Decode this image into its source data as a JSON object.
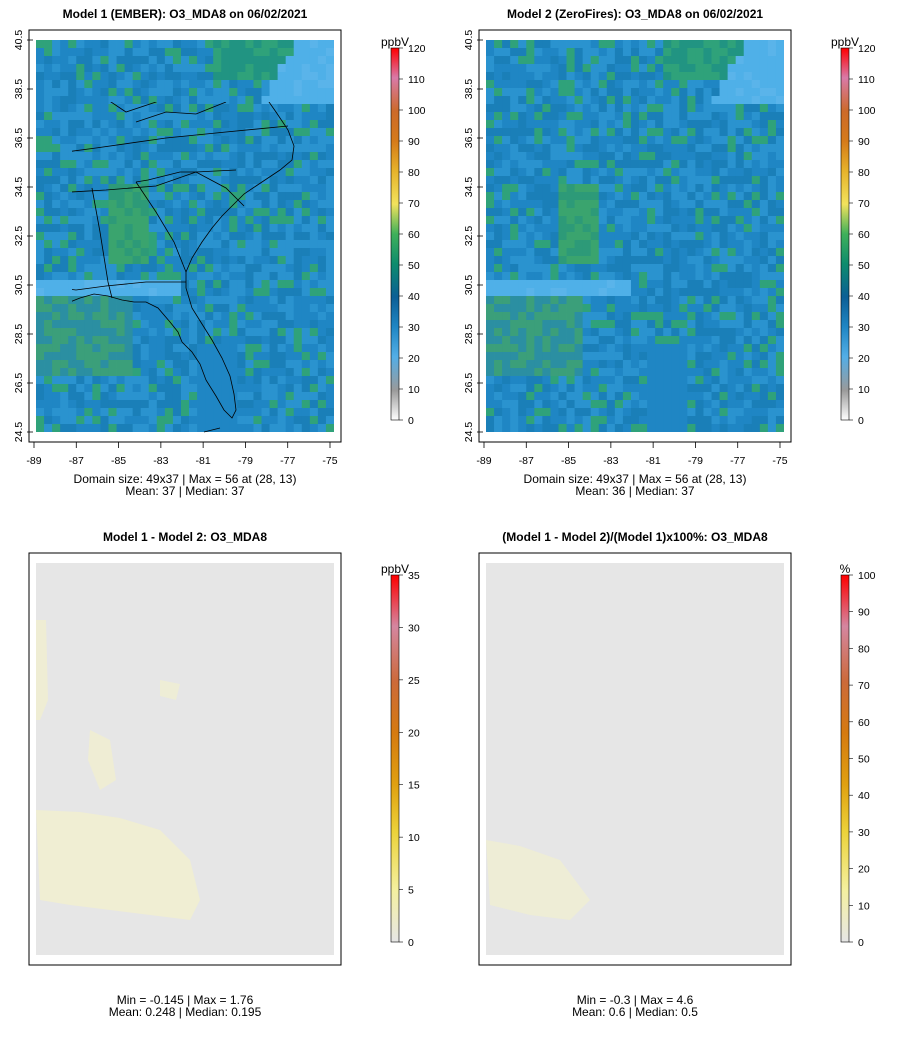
{
  "chart_data": [
    {
      "type": "heatmap",
      "title": "Model 1 (EMBER): O3_MDA8 on 06/02/2021",
      "domain_size": "49x37",
      "max": 56,
      "max_at": "(28, 13)",
      "mean": 37,
      "median": 37,
      "stats_line1": "Domain size: 49x37 | Max = 56 at (28, 13)",
      "stats_line2": "Mean: 37 |  Median: 37",
      "unit": "ppbV",
      "colorbar_ticks": [
        "0",
        "10",
        "20",
        "30",
        "40",
        "50",
        "60",
        "70",
        "80",
        "90",
        "100",
        "110",
        "120"
      ],
      "colorbar_range": [
        0,
        120
      ],
      "x_ticks": [
        "-89",
        "-87",
        "-85",
        "-83",
        "-81",
        "-79",
        "-77",
        "-75"
      ],
      "y_ticks": [
        "24.5",
        "26.5",
        "28.5",
        "30.5",
        "32.5",
        "34.5",
        "36.5",
        "38.5",
        "40.5"
      ],
      "xlim": [
        -89,
        -75
      ],
      "ylim": [
        24.5,
        40.5
      ]
    },
    {
      "type": "heatmap",
      "title": "Model 2 (ZeroFires): O3_MDA8 on 06/02/2021",
      "domain_size": "49x37",
      "max": 56,
      "max_at": "(28, 13)",
      "mean": 36,
      "median": 37,
      "stats_line1": "Domain size: 49x37 | Max = 56 at (28, 13)",
      "stats_line2": "Mean: 36 |  Median: 37",
      "unit": "ppbV",
      "colorbar_ticks": [
        "0",
        "10",
        "20",
        "30",
        "40",
        "50",
        "60",
        "70",
        "80",
        "90",
        "100",
        "110",
        "120"
      ],
      "colorbar_range": [
        0,
        120
      ],
      "x_ticks": [
        "-89",
        "-87",
        "-85",
        "-83",
        "-81",
        "-79",
        "-77",
        "-75"
      ],
      "y_ticks": [
        "24.5",
        "26.5",
        "28.5",
        "30.5",
        "32.5",
        "34.5",
        "36.5",
        "38.5",
        "40.5"
      ],
      "xlim": [
        -89,
        -75
      ],
      "ylim": [
        24.5,
        40.5
      ]
    },
    {
      "type": "heatmap",
      "title": "Model 1 - Model 2: O3_MDA8",
      "min": -0.145,
      "max": 1.76,
      "mean": 0.248,
      "median": 0.195,
      "stats_line1": "Min = -0.145 | Max = 1.76",
      "stats_line2": "Mean: 0.248 |  Median: 0.195",
      "unit": "ppbV",
      "colorbar_ticks": [
        "0",
        "5",
        "10",
        "15",
        "20",
        "25",
        "30",
        "35"
      ],
      "colorbar_range": [
        0,
        35
      ]
    },
    {
      "type": "heatmap",
      "title": "(Model 1 - Model 2)/(Model 1)x100%: O3_MDA8",
      "min": -0.3,
      "max": 4.6,
      "mean": 0.6,
      "median": 0.5,
      "stats_line1": "Min = -0.3 | Max = 4.6",
      "stats_line2": "Mean: 0.6 |  Median: 0.5",
      "unit": "%",
      "colorbar_ticks": [
        "0",
        "10",
        "20",
        "30",
        "40",
        "50",
        "60",
        "70",
        "80",
        "90",
        "100"
      ],
      "colorbar_range": [
        0,
        100
      ]
    }
  ],
  "colors": {
    "land_blue": "#1f86c4",
    "ocean_blue": "#4fb0e8",
    "green": "#2fa27a",
    "diff_bg": "#e6e6e6",
    "diff_yellow": "#f1efcf"
  }
}
